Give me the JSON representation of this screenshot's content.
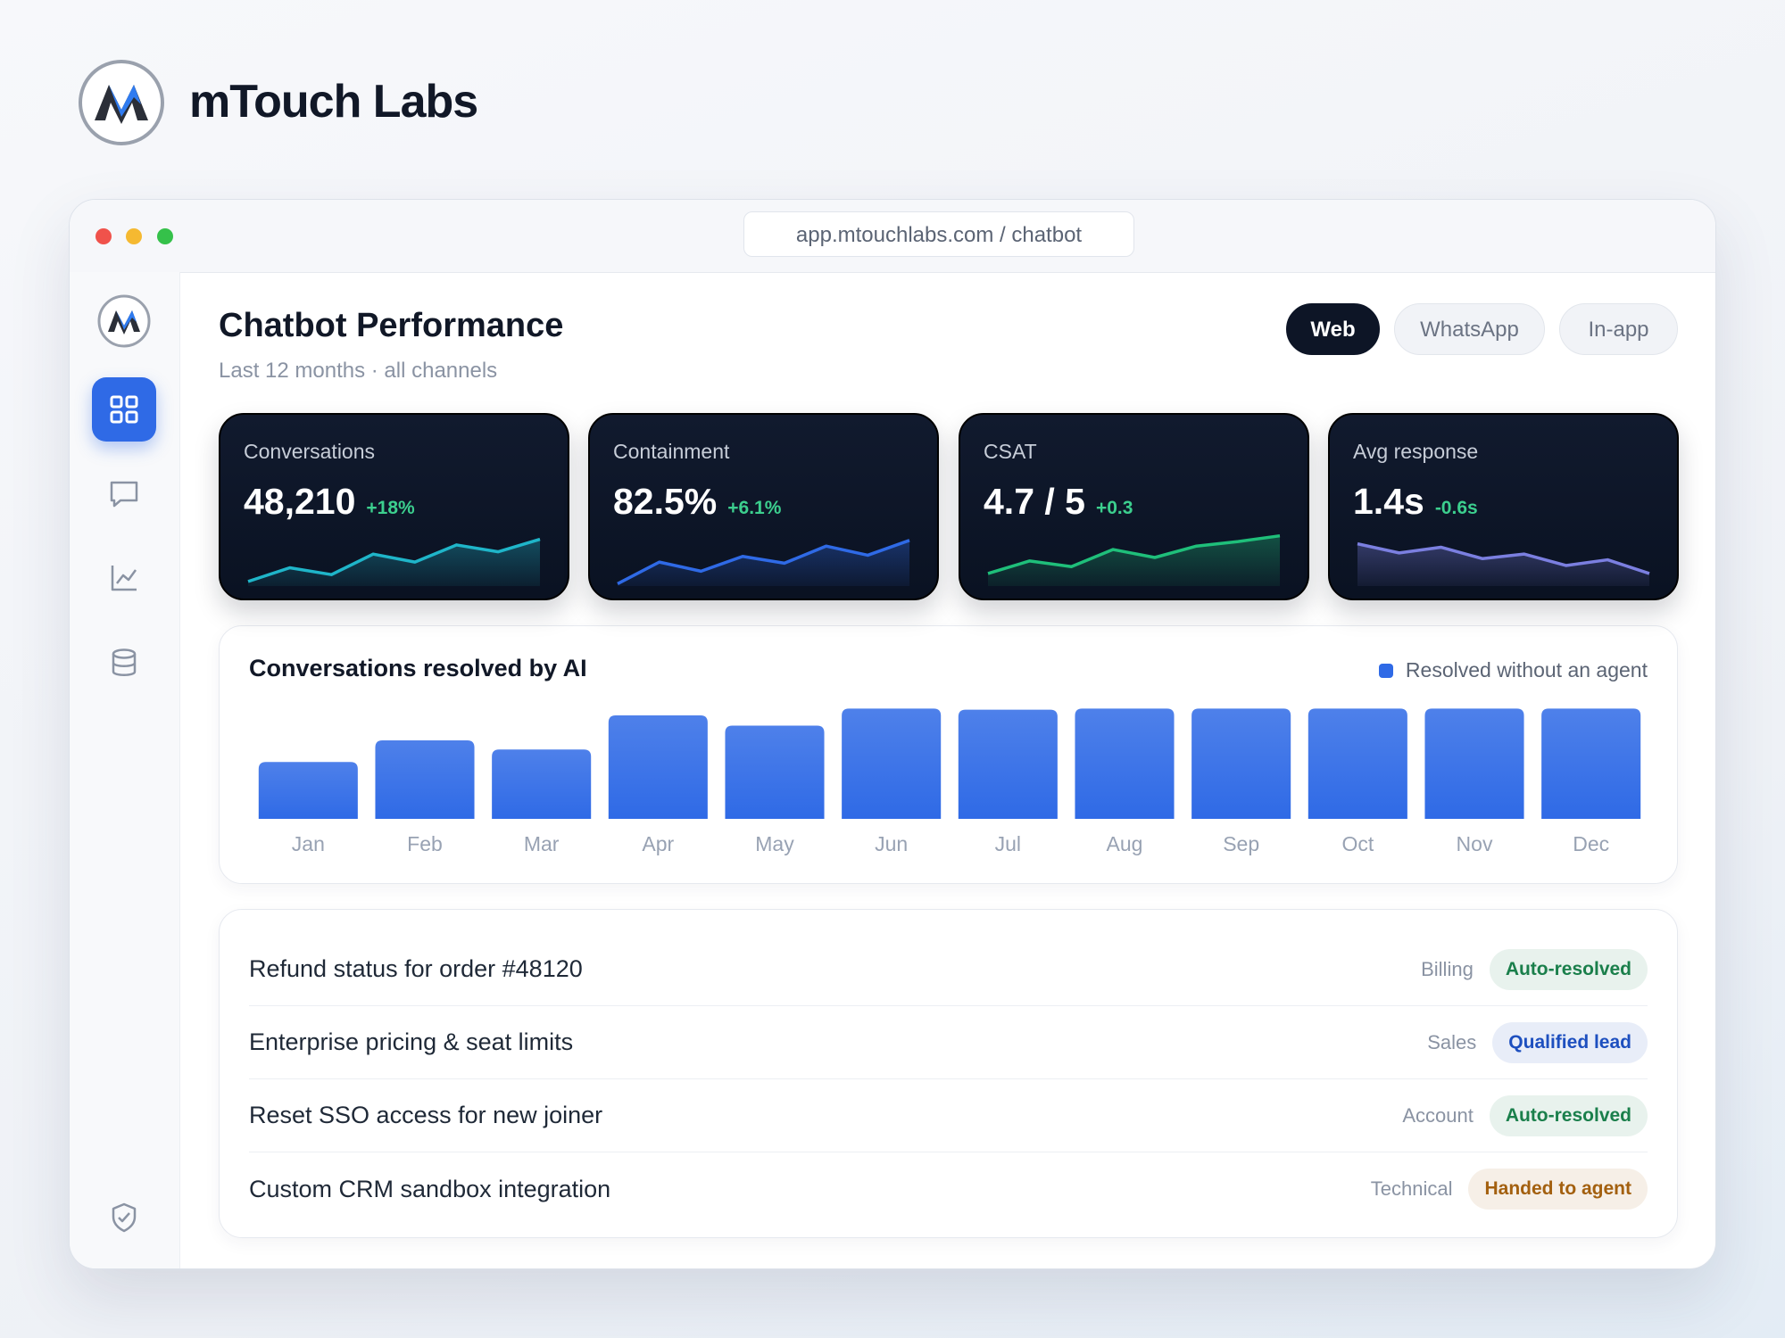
{
  "brand": "mTouch Labs",
  "url": "app.mtouchlabs.com / chatbot",
  "header": {
    "title": "Chatbot Performance",
    "subtitle": "Last 12 months · all channels"
  },
  "tabs": [
    "Web",
    "WhatsApp",
    "In-app"
  ],
  "kpis": [
    {
      "label": "Conversations",
      "value": "48,210",
      "delta": "+18%"
    },
    {
      "label": "Containment",
      "value": "82.5%",
      "delta": "+6.1%"
    },
    {
      "label": "CSAT",
      "value": "4.7 / 5",
      "delta": "+0.3"
    },
    {
      "label": "Avg response",
      "value": "1.4s",
      "delta": "-0.6s"
    }
  ],
  "chart_data": [
    {
      "type": "area",
      "color": "#1fb5c9",
      "values": [
        4,
        16,
        10,
        28,
        21,
        36,
        30,
        41
      ],
      "ylim": [
        0,
        50
      ]
    },
    {
      "type": "area",
      "color": "#2f6ae6",
      "values": [
        2,
        21,
        13,
        26,
        20,
        35,
        27,
        40
      ],
      "ylim": [
        0,
        50
      ]
    },
    {
      "type": "area",
      "color": "#1fbf7a",
      "values": [
        11,
        22,
        17,
        32,
        25,
        35,
        39,
        44
      ],
      "ylim": [
        0,
        50
      ]
    },
    {
      "type": "area",
      "color": "#7b7fe0",
      "values": [
        37,
        29,
        34,
        24,
        28,
        18,
        23,
        11
      ],
      "ylim": [
        0,
        50
      ]
    },
    {
      "type": "bar",
      "title": "Conversations resolved by AI",
      "categories": [
        "Jan",
        "Feb",
        "Mar",
        "Apr",
        "May",
        "Jun",
        "Jul",
        "Aug",
        "Sep",
        "Oct",
        "Nov",
        "Dec"
      ],
      "series": [
        {
          "name": "Resolved without an agent",
          "color": "#2f6ae6",
          "values": [
            50,
            69,
            61,
            91,
            82,
            97,
            96,
            97,
            97,
            97,
            97,
            97
          ]
        }
      ],
      "ylim": [
        0,
        100
      ]
    }
  ],
  "rows": [
    {
      "title": "Refund status for order #48120",
      "category": "Billing",
      "status": "Auto-resolved",
      "badge_color": "#1a7f4b"
    },
    {
      "title": "Enterprise pricing & seat limits",
      "category": "Sales",
      "status": "Qualified lead",
      "badge_color": "#1d4fbf"
    },
    {
      "title": "Reset SSO access for new joiner",
      "category": "Account",
      "status": "Auto-resolved",
      "badge_color": "#1a7f4b"
    },
    {
      "title": "Custom CRM sandbox integration",
      "category": "Technical",
      "status": "Handed to agent",
      "badge_color": "#a3600f"
    }
  ]
}
